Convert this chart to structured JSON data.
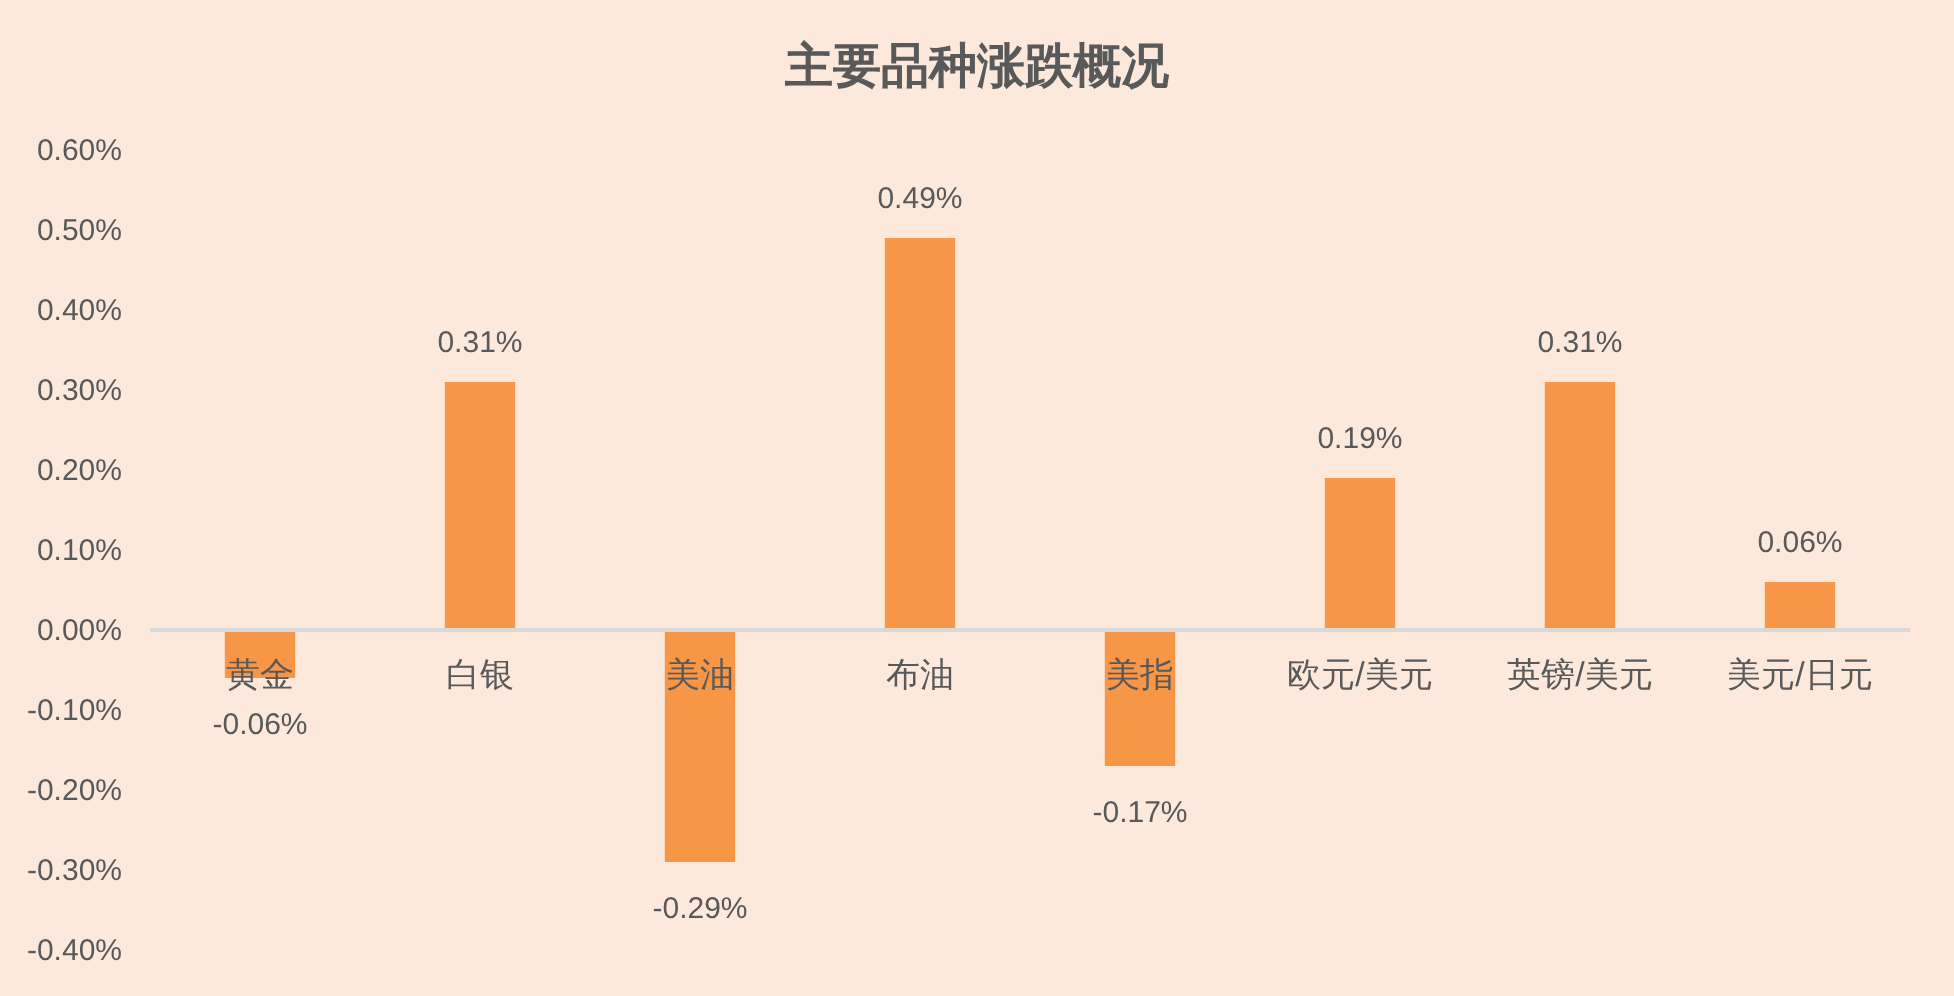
{
  "chart_data": {
    "type": "bar",
    "title": "主要品种涨跌概况",
    "categories": [
      "黄金",
      "白银",
      "美油",
      "布油",
      "美指",
      "欧元/美元",
      "英镑/美元",
      "美元/日元"
    ],
    "values": [
      -0.06,
      0.31,
      -0.29,
      0.49,
      -0.17,
      0.19,
      0.31,
      0.06
    ],
    "color": "#f79646",
    "value_labels": [
      "-0.06%",
      "0.31%",
      "-0.29%",
      "0.49%",
      "-0.17%",
      "0.19%",
      "0.31%",
      "0.06%"
    ],
    "ylim": [
      -0.4,
      0.6
    ],
    "yticks": [
      {
        "value": 0.6,
        "label": "0.60%"
      },
      {
        "value": 0.5,
        "label": "0.50%"
      },
      {
        "value": 0.4,
        "label": "0.40%"
      },
      {
        "value": 0.3,
        "label": "0.30%"
      },
      {
        "value": 0.2,
        "label": "0.20%"
      },
      {
        "value": 0.1,
        "label": "0.10%"
      },
      {
        "value": 0,
        "label": "0.00%"
      },
      {
        "value": -0.1,
        "label": "-0.10%"
      },
      {
        "value": -0.2,
        "label": "-0.20%"
      },
      {
        "value": -0.3,
        "label": "-0.30%"
      },
      {
        "value": -0.4,
        "label": "-0.40%"
      }
    ]
  }
}
